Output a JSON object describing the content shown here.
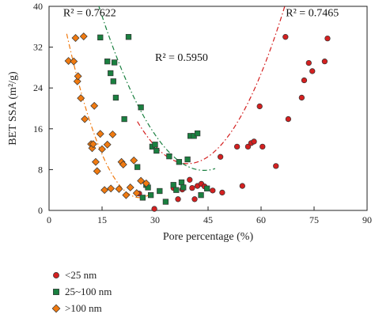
{
  "chart_data": {
    "type": "scatter",
    "xlabel": "Pore percentage (%)",
    "ylabel": "BET SSA (m²/g)",
    "xlim": [
      0,
      90
    ],
    "ylim": [
      0,
      40
    ],
    "x_ticks": [
      0,
      15,
      30,
      45,
      60,
      75,
      90
    ],
    "y_ticks": [
      0,
      8,
      16,
      24,
      32,
      40
    ],
    "grid": false,
    "legend_position": "bottom-left",
    "series": [
      {
        "name": "<25 nm",
        "marker": "circle",
        "color": "#d42020",
        "points": [
          [
            25.5,
            3.3
          ],
          [
            29.8,
            0.3
          ],
          [
            35.2,
            4.4
          ],
          [
            36.5,
            2.2
          ],
          [
            37.7,
            4.1
          ],
          [
            39.8,
            6.0
          ],
          [
            40.5,
            4.4
          ],
          [
            41.2,
            2.2
          ],
          [
            42.0,
            4.8
          ],
          [
            43.1,
            5.2
          ],
          [
            44.0,
            4.7
          ],
          [
            46.3,
            3.9
          ],
          [
            48.5,
            10.5
          ],
          [
            49.0,
            3.5
          ],
          [
            53.2,
            12.5
          ],
          [
            54.7,
            4.8
          ],
          [
            56.3,
            12.5
          ],
          [
            57.2,
            13.2
          ],
          [
            58.0,
            13.5
          ],
          [
            59.6,
            20.4
          ],
          [
            60.4,
            12.5
          ],
          [
            64.2,
            8.7
          ],
          [
            66.9,
            34.0
          ],
          [
            67.7,
            17.9
          ],
          [
            71.5,
            22.1
          ],
          [
            72.2,
            25.5
          ],
          [
            73.5,
            28.9
          ],
          [
            74.5,
            27.3
          ],
          [
            78.0,
            29.2
          ],
          [
            78.8,
            33.7
          ]
        ],
        "fit_r2": "R² = 0.7465",
        "fit_coef": [
          71.96,
          -3.2025,
          0.040833
        ],
        "fit_range": [
          25,
          81
        ]
      },
      {
        "name": "25~100 nm",
        "marker": "square",
        "color": "#1a8040",
        "points": [
          [
            14.5,
            33.9
          ],
          [
            16.5,
            29.2
          ],
          [
            17.4,
            26.9
          ],
          [
            18.2,
            25.3
          ],
          [
            18.5,
            29.0
          ],
          [
            18.9,
            22.1
          ],
          [
            21.3,
            17.9
          ],
          [
            22.5,
            34.0
          ],
          [
            25.0,
            8.5
          ],
          [
            26.0,
            20.2
          ],
          [
            26.5,
            2.5
          ],
          [
            27.5,
            5.0
          ],
          [
            28.0,
            4.5
          ],
          [
            28.8,
            3.0
          ],
          [
            29.2,
            12.5
          ],
          [
            30.0,
            12.9
          ],
          [
            30.4,
            11.7
          ],
          [
            31.3,
            3.8
          ],
          [
            33.0,
            1.7
          ],
          [
            34.0,
            10.6
          ],
          [
            35.2,
            5.0
          ],
          [
            36.0,
            4.0
          ],
          [
            36.8,
            9.5
          ],
          [
            37.5,
            5.5
          ],
          [
            38.0,
            4.5
          ],
          [
            39.2,
            10.0
          ],
          [
            40.0,
            14.6
          ],
          [
            41.0,
            14.6
          ],
          [
            42.0,
            15.1
          ],
          [
            43.0,
            3.0
          ],
          [
            44.7,
            4.3
          ]
        ],
        "fit_r2": "R² = 0.5950",
        "fit_coef": [
          77.65,
          -3.1806,
          0.036232
        ],
        "fit_range": [
          14,
          47
        ]
      },
      {
        "name": ">100 nm",
        "marker": "diamond",
        "color": "#f07a10",
        "points": [
          [
            5.5,
            29.3
          ],
          [
            7.0,
            29.2
          ],
          [
            7.5,
            33.8
          ],
          [
            8.0,
            25.3
          ],
          [
            8.2,
            26.3
          ],
          [
            9.0,
            22.0
          ],
          [
            9.8,
            34.1
          ],
          [
            10.1,
            17.9
          ],
          [
            11.9,
            13.0
          ],
          [
            12.2,
            12.2
          ],
          [
            12.5,
            13.0
          ],
          [
            12.8,
            20.5
          ],
          [
            13.2,
            9.5
          ],
          [
            13.6,
            7.7
          ],
          [
            14.5,
            15.0
          ],
          [
            15.0,
            12.0
          ],
          [
            15.7,
            4.0
          ],
          [
            16.5,
            12.9
          ],
          [
            17.5,
            4.3
          ],
          [
            18.0,
            14.9
          ],
          [
            19.8,
            4.2
          ],
          [
            20.5,
            9.5
          ],
          [
            21.0,
            9.0
          ],
          [
            21.8,
            3.0
          ],
          [
            23.0,
            4.5
          ],
          [
            24.0,
            9.8
          ],
          [
            24.8,
            3.4
          ],
          [
            26.0,
            5.8
          ],
          [
            27.5,
            5.3
          ]
        ],
        "fit_r2": "R² = 0.7622",
        "fit_coef": [
          52.07,
          -3.87,
          0.07556
        ],
        "fit_range": [
          5,
          28
        ]
      }
    ],
    "annotations": [
      {
        "text": "R² = 0.7622",
        "x": 4,
        "y": 38.1
      },
      {
        "text": "R² = 0.5950",
        "x": 30,
        "y": 29.3
      },
      {
        "text": "R² = 0.7465",
        "x": 67,
        "y": 38.1
      }
    ]
  }
}
